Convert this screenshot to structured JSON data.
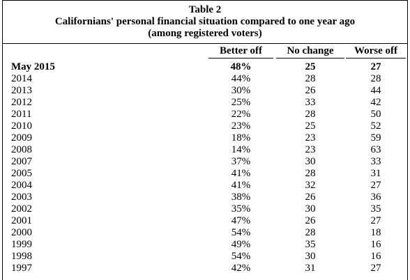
{
  "table": {
    "title_line1": "Table 2",
    "title_line2": "Californians' personal financial situation compared to one year ago",
    "title_line3": "(among registered voters)",
    "headers": {
      "better_off": "Better off",
      "no_change": "No change",
      "worse_off": "Worse off"
    },
    "rows": [
      {
        "year": "May 2015",
        "better_off": "48%",
        "no_change": "25",
        "worse_off": "27"
      },
      {
        "year": "2014",
        "better_off": "44%",
        "no_change": "28",
        "worse_off": "28"
      },
      {
        "year": "2013",
        "better_off": "30%",
        "no_change": "26",
        "worse_off": "44"
      },
      {
        "year": "2012",
        "better_off": "25%",
        "no_change": "33",
        "worse_off": "42"
      },
      {
        "year": "2011",
        "better_off": "22%",
        "no_change": "28",
        "worse_off": "50"
      },
      {
        "year": "2010",
        "better_off": "23%",
        "no_change": "25",
        "worse_off": "52"
      },
      {
        "year": "2009",
        "better_off": "18%",
        "no_change": "23",
        "worse_off": "59"
      },
      {
        "year": "2008",
        "better_off": "14%",
        "no_change": "23",
        "worse_off": "63"
      },
      {
        "year": "2007",
        "better_off": "37%",
        "no_change": "30",
        "worse_off": "33"
      },
      {
        "year": "2005",
        "better_off": "41%",
        "no_change": "28",
        "worse_off": "31"
      },
      {
        "year": "2004",
        "better_off": "41%",
        "no_change": "32",
        "worse_off": "27"
      },
      {
        "year": "2003",
        "better_off": "38%",
        "no_change": "26",
        "worse_off": "36"
      },
      {
        "year": "2002",
        "better_off": "35%",
        "no_change": "30",
        "worse_off": "35"
      },
      {
        "year": "2001",
        "better_off": "47%",
        "no_change": "26",
        "worse_off": "27"
      },
      {
        "year": "2000",
        "better_off": "54%",
        "no_change": "28",
        "worse_off": "18"
      },
      {
        "year": "1999",
        "better_off": "49%",
        "no_change": "35",
        "worse_off": "16"
      },
      {
        "year": "1998",
        "better_off": "54%",
        "no_change": "30",
        "worse_off": "16"
      },
      {
        "year": "1997",
        "better_off": "42%",
        "no_change": "31",
        "worse_off": "27"
      }
    ]
  }
}
